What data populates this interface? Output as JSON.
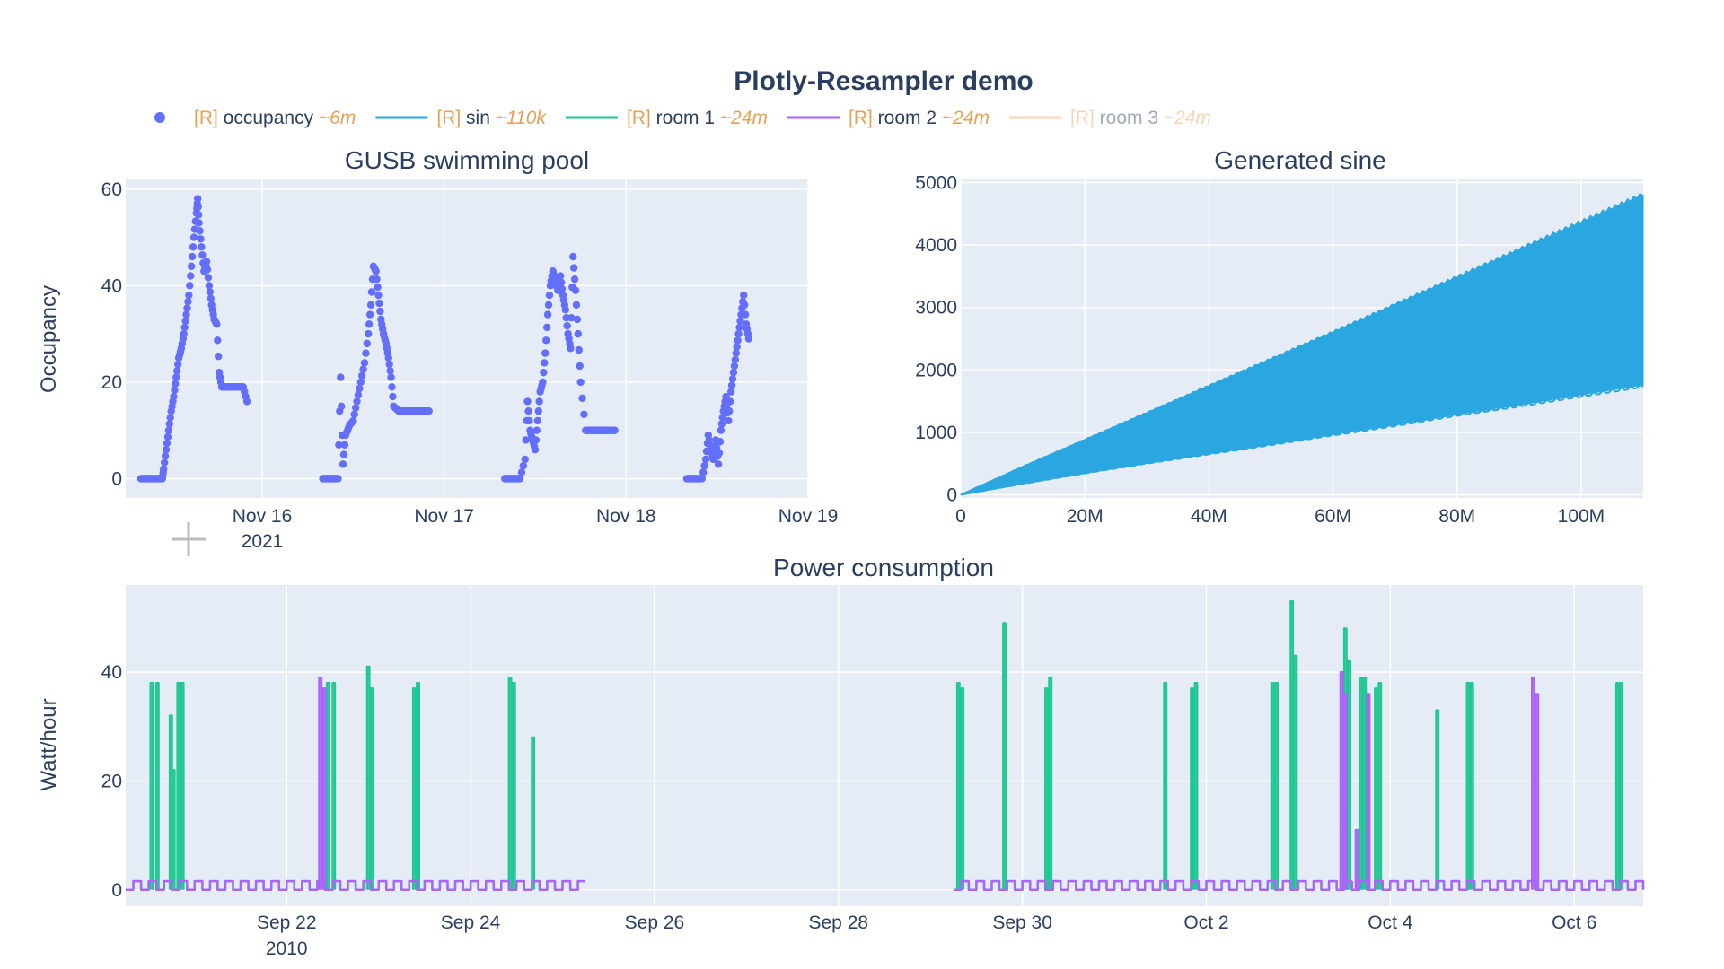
{
  "figure_title": "Plotly-Resampler demo",
  "legend": [
    {
      "prefix": "[R]",
      "name": "occupancy",
      "tag": "~6m",
      "color": "#636efa",
      "symbol": "dot",
      "dimmed": false
    },
    {
      "prefix": "[R]",
      "name": "sin",
      "tag": "~110k",
      "color": "#2aa7e0",
      "symbol": "line",
      "dimmed": false
    },
    {
      "prefix": "[R]",
      "name": "room 1",
      "tag": "~24m",
      "color": "#1fc893",
      "symbol": "line",
      "dimmed": false
    },
    {
      "prefix": "[R]",
      "name": "room 2",
      "tag": "~24m",
      "color": "#ab63fa",
      "symbol": "line",
      "dimmed": false
    },
    {
      "prefix": "[R]",
      "name": "room 3",
      "tag": "~24m",
      "color": "#ffa15a",
      "symbol": "line",
      "dimmed": true
    }
  ],
  "chart_data": [
    {
      "type": "scatter",
      "title": "GUSB swimming pool",
      "ylabel": "Occupancy",
      "xlabel": "",
      "x_range": [
        "2021-11-15T06:00",
        "2021-11-19T00:00"
      ],
      "ylim": [
        -4,
        62
      ],
      "x_ticks": [
        "Nov 16",
        "Nov 17",
        "Nov 18",
        "Nov 19"
      ],
      "x_tick_sub": "2021",
      "y_ticks": [
        0,
        20,
        40,
        60
      ],
      "series": [
        {
          "name": "occupancy",
          "color": "#636efa",
          "points": [
            [
              "2021-11-15T08:00",
              0
            ],
            [
              "2021-11-15T09:00",
              0
            ],
            [
              "2021-11-15T10:00",
              0
            ],
            [
              "2021-11-15T10:50",
              0
            ],
            [
              "2021-11-15T11:00",
              2
            ],
            [
              "2021-11-15T11:20",
              6
            ],
            [
              "2021-11-15T11:40",
              10
            ],
            [
              "2021-11-15T12:00",
              14
            ],
            [
              "2021-11-15T12:20",
              17
            ],
            [
              "2021-11-15T12:40",
              21
            ],
            [
              "2021-11-15T13:00",
              25
            ],
            [
              "2021-11-15T13:20",
              27
            ],
            [
              "2021-11-15T13:40",
              30
            ],
            [
              "2021-11-15T14:00",
              34
            ],
            [
              "2021-11-15T14:20",
              38
            ],
            [
              "2021-11-15T14:40",
              44
            ],
            [
              "2021-11-15T15:00",
              50
            ],
            [
              "2021-11-15T15:20",
              55
            ],
            [
              "2021-11-15T15:30",
              58
            ],
            [
              "2021-11-15T15:40",
              53
            ],
            [
              "2021-11-15T16:00",
              48
            ],
            [
              "2021-11-15T16:20",
              43
            ],
            [
              "2021-11-15T16:40",
              45
            ],
            [
              "2021-11-15T17:00",
              40
            ],
            [
              "2021-11-15T17:20",
              36
            ],
            [
              "2021-11-15T17:40",
              33
            ],
            [
              "2021-11-15T18:00",
              32
            ],
            [
              "2021-11-15T18:20",
              22
            ],
            [
              "2021-11-15T18:40",
              19
            ],
            [
              "2021-11-15T19:30",
              19
            ],
            [
              "2021-11-15T20:30",
              19
            ],
            [
              "2021-11-15T21:30",
              19
            ],
            [
              "2021-11-15T22:00",
              16
            ],
            [
              "2021-11-16T08:00",
              0
            ],
            [
              "2021-11-16T09:00",
              0
            ],
            [
              "2021-11-16T10:00",
              0
            ],
            [
              "2021-11-16T10:40",
              3
            ],
            [
              "2021-11-16T10:20",
              21
            ],
            [
              "2021-11-16T11:00",
              9
            ],
            [
              "2021-11-16T11:30",
              11
            ],
            [
              "2021-11-16T12:00",
              12
            ],
            [
              "2021-11-16T12:30",
              16
            ],
            [
              "2021-11-16T13:00",
              20
            ],
            [
              "2021-11-16T13:30",
              24
            ],
            [
              "2021-11-16T14:00",
              30
            ],
            [
              "2021-11-16T14:20",
              36
            ],
            [
              "2021-11-16T14:40",
              44
            ],
            [
              "2021-11-16T15:00",
              43
            ],
            [
              "2021-11-16T15:20",
              38
            ],
            [
              "2021-11-16T15:40",
              33
            ],
            [
              "2021-11-16T16:00",
              30
            ],
            [
              "2021-11-16T16:20",
              28
            ],
            [
              "2021-11-16T16:40",
              25
            ],
            [
              "2021-11-16T17:00",
              21
            ],
            [
              "2021-11-16T17:20",
              15
            ],
            [
              "2021-11-16T18:00",
              14
            ],
            [
              "2021-11-16T19:00",
              14
            ],
            [
              "2021-11-16T20:00",
              14
            ],
            [
              "2021-11-16T21:00",
              14
            ],
            [
              "2021-11-16T22:00",
              14
            ],
            [
              "2021-11-17T08:00",
              0
            ],
            [
              "2021-11-17T09:00",
              0
            ],
            [
              "2021-11-17T10:00",
              0
            ],
            [
              "2021-11-17T10:40",
              4
            ],
            [
              "2021-11-17T11:00",
              16
            ],
            [
              "2021-11-17T11:20",
              10
            ],
            [
              "2021-11-17T11:40",
              8
            ],
            [
              "2021-11-17T12:00",
              6
            ],
            [
              "2021-11-17T12:20",
              12
            ],
            [
              "2021-11-17T12:40",
              18
            ],
            [
              "2021-11-17T13:00",
              20
            ],
            [
              "2021-11-17T13:20",
              26
            ],
            [
              "2021-11-17T13:40",
              34
            ],
            [
              "2021-11-17T14:00",
              40
            ],
            [
              "2021-11-17T14:20",
              43
            ],
            [
              "2021-11-17T14:40",
              41
            ],
            [
              "2021-11-17T15:00",
              39
            ],
            [
              "2021-11-17T15:20",
              42
            ],
            [
              "2021-11-17T15:40",
              38
            ],
            [
              "2021-11-17T16:00",
              35
            ],
            [
              "2021-11-17T16:20",
              30
            ],
            [
              "2021-11-17T16:40",
              27
            ],
            [
              "2021-11-17T17:00",
              46
            ],
            [
              "2021-11-17T17:20",
              39
            ],
            [
              "2021-11-17T17:40",
              30
            ],
            [
              "2021-11-17T18:00",
              20
            ],
            [
              "2021-11-17T18:40",
              10
            ],
            [
              "2021-11-17T19:30",
              10
            ],
            [
              "2021-11-17T20:30",
              10
            ],
            [
              "2021-11-17T21:30",
              10
            ],
            [
              "2021-11-17T22:30",
              10
            ],
            [
              "2021-11-18T08:00",
              0
            ],
            [
              "2021-11-18T09:00",
              0
            ],
            [
              "2021-11-18T10:00",
              0
            ],
            [
              "2021-11-18T10:30",
              4
            ],
            [
              "2021-11-18T10:50",
              9
            ],
            [
              "2021-11-18T11:10",
              6
            ],
            [
              "2021-11-18T11:30",
              4
            ],
            [
              "2021-11-18T11:50",
              8
            ],
            [
              "2021-11-18T12:10",
              3
            ],
            [
              "2021-11-18T12:30",
              10
            ],
            [
              "2021-11-18T12:50",
              14
            ],
            [
              "2021-11-18T13:10",
              17
            ],
            [
              "2021-11-18T13:30",
              12
            ],
            [
              "2021-11-18T13:50",
              18
            ],
            [
              "2021-11-18T14:10",
              22
            ],
            [
              "2021-11-18T14:30",
              26
            ],
            [
              "2021-11-18T14:50",
              30
            ],
            [
              "2021-11-18T15:10",
              34
            ],
            [
              "2021-11-18T15:30",
              38
            ],
            [
              "2021-11-18T15:50",
              32
            ],
            [
              "2021-11-18T16:10",
              29
            ]
          ]
        }
      ]
    },
    {
      "type": "area",
      "title": "Generated sine",
      "xlabel": "",
      "ylabel": "",
      "x_range": [
        0,
        110000000
      ],
      "ylim": [
        -50,
        5050
      ],
      "x_ticks": [
        "0",
        "20M",
        "40M",
        "60M",
        "80M",
        "100M"
      ],
      "x_tick_values": [
        0,
        20000000,
        40000000,
        60000000,
        80000000,
        100000000
      ],
      "y_ticks": [
        0,
        1000,
        2000,
        3000,
        4000,
        5000
      ],
      "series": [
        {
          "name": "sin",
          "color": "#2aa7e0",
          "upper": [
            [
              0,
              0
            ],
            [
              10000000,
              450
            ],
            [
              20000000,
              880
            ],
            [
              30000000,
              1310
            ],
            [
              40000000,
              1740
            ],
            [
              50000000,
              2170
            ],
            [
              60000000,
              2600
            ],
            [
              70000000,
              3040
            ],
            [
              80000000,
              3480
            ],
            [
              90000000,
              3920
            ],
            [
              100000000,
              4360
            ],
            [
              110000000,
              4800
            ]
          ],
          "lower": [
            [
              0,
              0
            ],
            [
              10000000,
              180
            ],
            [
              20000000,
              350
            ],
            [
              30000000,
              510
            ],
            [
              40000000,
              660
            ],
            [
              50000000,
              810
            ],
            [
              60000000,
              970
            ],
            [
              70000000,
              1120
            ],
            [
              80000000,
              1290
            ],
            [
              90000000,
              1440
            ],
            [
              100000000,
              1600
            ],
            [
              110000000,
              1760
            ]
          ]
        }
      ]
    },
    {
      "type": "line",
      "title": "Power consumption",
      "ylabel": "Watt/hour",
      "xlabel": "",
      "x_range": [
        "2010-09-20T06:00",
        "2010-10-06T18:00"
      ],
      "ylim": [
        -3,
        56
      ],
      "x_ticks": [
        "Sep 22",
        "Sep 24",
        "Sep 26",
        "Sep 28",
        "Sep 30",
        "Oct 2",
        "Oct 4",
        "Oct 6"
      ],
      "x_tick_values": [
        "2010-09-22",
        "2010-09-24",
        "2010-09-26",
        "2010-09-28",
        "2010-09-30",
        "2010-10-02",
        "2010-10-04",
        "2010-10-06"
      ],
      "x_tick_sub": "2010",
      "y_ticks": [
        0,
        20,
        40
      ],
      "gap": [
        "2010-09-25T04:00",
        "2010-09-29T06:00"
      ],
      "baseline_pulse": {
        "low": 0,
        "high": 1.6,
        "period_hours": 4
      },
      "series": [
        {
          "name": "room 1",
          "color": "#1fc893",
          "spikes": [
            [
              "2010-09-20T12:30",
              38
            ],
            [
              "2010-09-20T14:00",
              38
            ],
            [
              "2010-09-20T17:30",
              32
            ],
            [
              "2010-09-20T18:10",
              22
            ],
            [
              "2010-09-20T19:30",
              38
            ],
            [
              "2010-09-20T20:30",
              38
            ],
            [
              "2010-09-22T10:30",
              38
            ],
            [
              "2010-09-22T12:00",
              38
            ],
            [
              "2010-09-22T21:00",
              41
            ],
            [
              "2010-09-22T22:00",
              37
            ],
            [
              "2010-09-23T09:00",
              37
            ],
            [
              "2010-09-23T10:00",
              38
            ],
            [
              "2010-09-24T10:00",
              39
            ],
            [
              "2010-09-24T11:00",
              38
            ],
            [
              "2010-09-24T16:00",
              28
            ],
            [
              "2010-09-29T07:00",
              38
            ],
            [
              "2010-09-29T08:00",
              37
            ],
            [
              "2010-09-29T19:00",
              49
            ],
            [
              "2010-09-30T06:00",
              37
            ],
            [
              "2010-09-30T07:00",
              39
            ],
            [
              "2010-10-01T13:00",
              38
            ],
            [
              "2010-10-01T20:00",
              37
            ],
            [
              "2010-10-01T21:00",
              38
            ],
            [
              "2010-10-02T17:00",
              38
            ],
            [
              "2010-10-02T18:00",
              38
            ],
            [
              "2010-10-02T22:00",
              53
            ],
            [
              "2010-10-02T23:00",
              43
            ],
            [
              "2010-10-03T12:00",
              48
            ],
            [
              "2010-10-03T13:00",
              42
            ],
            [
              "2010-10-03T16:00",
              39
            ],
            [
              "2010-10-03T17:00",
              39
            ],
            [
              "2010-10-03T20:00",
              37
            ],
            [
              "2010-10-03T21:00",
              38
            ],
            [
              "2010-10-04T12:00",
              33
            ],
            [
              "2010-10-04T20:00",
              38
            ],
            [
              "2010-10-04T21:00",
              38
            ],
            [
              "2010-10-06T11:00",
              38
            ],
            [
              "2010-10-06T12:00",
              38
            ]
          ]
        },
        {
          "name": "room 2",
          "color": "#ab63fa",
          "spikes": [
            [
              "2010-09-22T08:30",
              39
            ],
            [
              "2010-09-22T09:30",
              37
            ],
            [
              "2010-10-03T11:00",
              40
            ],
            [
              "2010-10-03T12:00",
              36
            ],
            [
              "2010-10-03T15:00",
              11
            ],
            [
              "2010-10-03T18:00",
              36
            ],
            [
              "2010-10-05T13:00",
              39
            ],
            [
              "2010-10-05T14:00",
              36
            ]
          ]
        }
      ]
    }
  ]
}
